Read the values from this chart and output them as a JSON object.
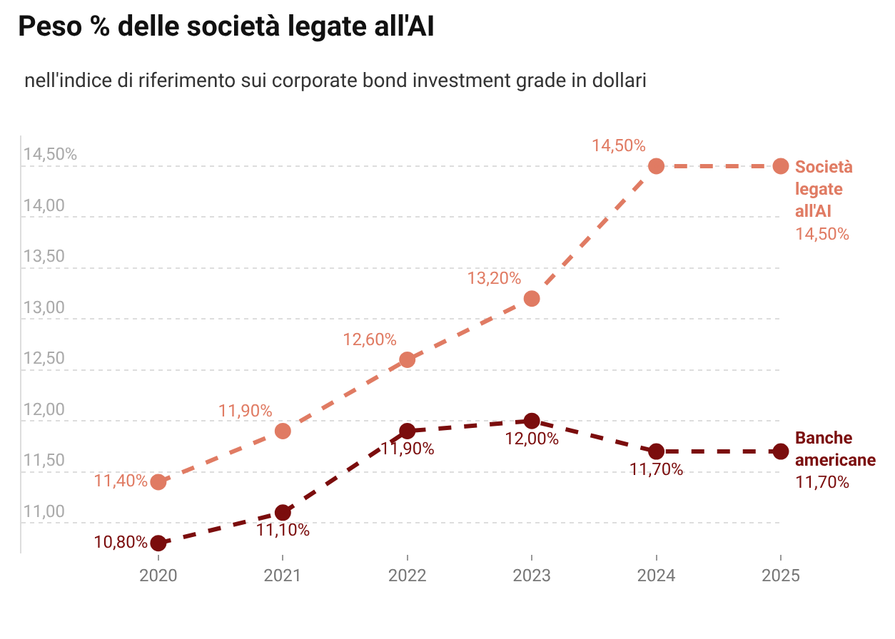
{
  "chart_data": {
    "type": "line",
    "title": "Peso % delle società legate all'AI",
    "subtitle": "nell'indice di riferimento sui corporate bond investment grade in dollari",
    "x": [
      2020,
      2021,
      2022,
      2023,
      2024,
      2025
    ],
    "xlim": [
      2018.9,
      2025
    ],
    "xticks": [
      2020,
      2021,
      2022,
      2023,
      2024,
      2025
    ],
    "ylim": [
      10.7,
      14.8
    ],
    "yticks": [
      {
        "value": 11,
        "label": "11,00"
      },
      {
        "value": 11.5,
        "label": "11,50"
      },
      {
        "value": 12,
        "label": "12,00"
      },
      {
        "value": 12.5,
        "label": "12,50"
      },
      {
        "value": 13,
        "label": "13,00"
      },
      {
        "value": 13.5,
        "label": "13,50"
      },
      {
        "value": 14,
        "label": "14,00"
      },
      {
        "value": 14.5,
        "label": "14,50%"
      }
    ],
    "series": [
      {
        "name": "Società legate all'AI",
        "color": "#e07b63",
        "values": [
          11.4,
          11.9,
          12.6,
          13.2,
          14.5,
          14.5
        ],
        "value_labels": [
          "11,40%",
          "11,90%",
          "12,60%",
          "13,20%",
          "14,50%",
          "14,50%"
        ]
      },
      {
        "name": "Banche americane",
        "color": "#7b0d0d",
        "values": [
          10.8,
          11.1,
          11.9,
          12.0,
          11.7,
          11.7
        ],
        "value_labels": [
          "10,80%",
          "11,10%",
          "11,90%",
          "12,00%",
          "11,70%",
          "11,70%"
        ]
      }
    ],
    "grid": "y",
    "legend": false,
    "marker": "circle",
    "line_style": "dashed"
  }
}
